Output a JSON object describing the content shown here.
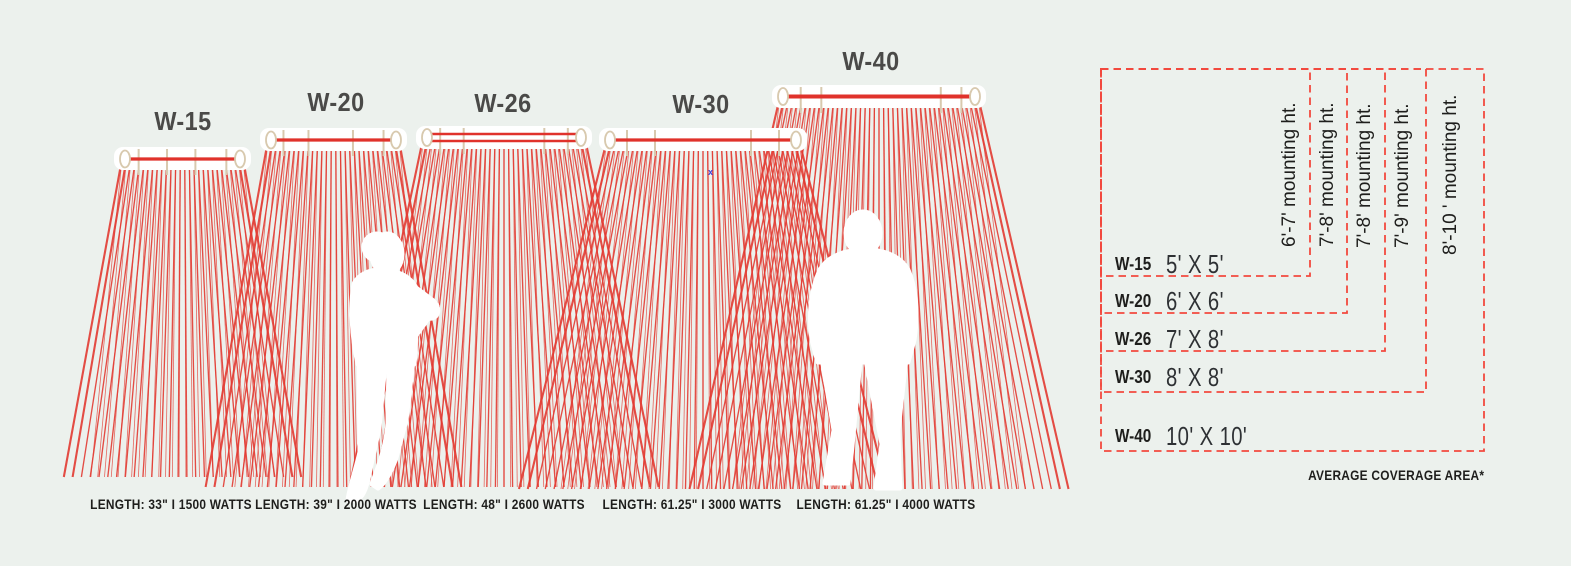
{
  "colors": {
    "background": "#ECF1ED",
    "fan_red": "#E33B32",
    "bar_red": "#E0322B",
    "dashed_red": "#F2493E",
    "beige": "#D8C9AE",
    "title_gray": "#4A4A48",
    "text_dark": "#1E1E1C",
    "silhouette_white": "#FFFFFF",
    "stray_blue": "#3E3ED8"
  },
  "heaters": [
    {
      "model": "W-15",
      "spec": "LENGTH: 33\" I 1500 WATTS",
      "coverage": "5' X 5'",
      "mounting": "6'-7' mounting ht."
    },
    {
      "model": "W-20",
      "spec": "LENGTH: 39\" I 2000 WATTS",
      "coverage": "6' X 6'",
      "mounting": "7'-8' mounting ht."
    },
    {
      "model": "W-26",
      "spec": "LENGTH: 48\" I 2600 WATTS",
      "coverage": "7' X 8'",
      "mounting": "7'-8' mounting ht."
    },
    {
      "model": "W-30",
      "spec": "LENGTH: 61.25\" I 3000 WATTS",
      "coverage": "8' X 8'",
      "mounting": "7'-9' mounting ht."
    },
    {
      "model": "W-40",
      "spec": "LENGTH: 61.25\" I 4000 WATTS",
      "coverage": "10' X 10'",
      "mounting": "8'-10 ' mounting ht."
    }
  ],
  "coverage_table": {
    "footnote": "AVERAGE COVERAGE AREA*"
  },
  "stray_marker": "x"
}
